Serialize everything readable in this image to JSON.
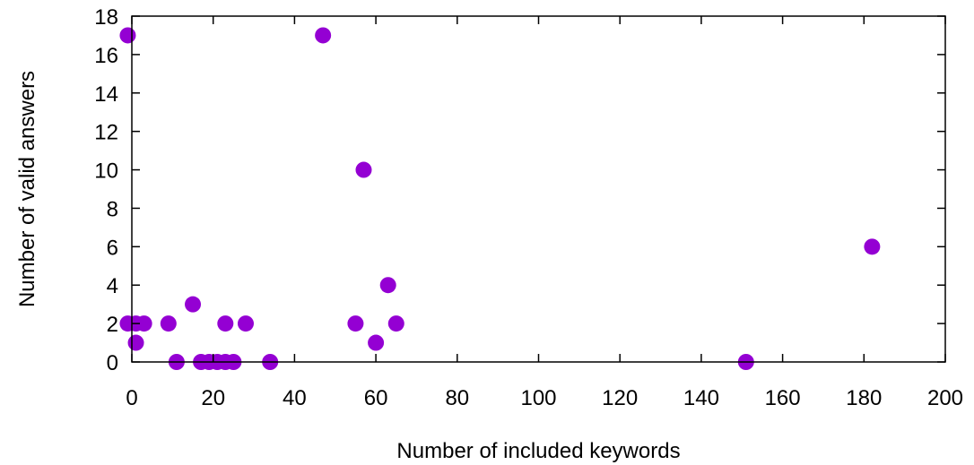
{
  "chart_data": {
    "type": "scatter",
    "xlabel": "Number of included keywords",
    "ylabel": "Number of valid answers",
    "xlim": [
      0,
      200
    ],
    "ylim": [
      0,
      18
    ],
    "xticks": [
      0,
      20,
      40,
      60,
      80,
      100,
      120,
      140,
      160,
      180,
      200
    ],
    "yticks": [
      0,
      2,
      4,
      6,
      8,
      10,
      12,
      14,
      16,
      18
    ],
    "grid": false,
    "legend": "none",
    "marker_color": "#9400d3",
    "points": [
      {
        "x": -1,
        "y": 17
      },
      {
        "x": 47,
        "y": 17
      },
      {
        "x": 57,
        "y": 10
      },
      {
        "x": 182,
        "y": 6
      },
      {
        "x": 63,
        "y": 4
      },
      {
        "x": 15,
        "y": 3
      },
      {
        "x": -1,
        "y": 2
      },
      {
        "x": 1,
        "y": 2
      },
      {
        "x": 3,
        "y": 2
      },
      {
        "x": 9,
        "y": 2
      },
      {
        "x": 23,
        "y": 2
      },
      {
        "x": 28,
        "y": 2
      },
      {
        "x": 55,
        "y": 2
      },
      {
        "x": 65,
        "y": 2
      },
      {
        "x": 1,
        "y": 1
      },
      {
        "x": 60,
        "y": 1
      },
      {
        "x": 11,
        "y": 0
      },
      {
        "x": 17,
        "y": 0
      },
      {
        "x": 19,
        "y": 0
      },
      {
        "x": 21,
        "y": 0
      },
      {
        "x": 23,
        "y": 0
      },
      {
        "x": 25,
        "y": 0
      },
      {
        "x": 34,
        "y": 0
      },
      {
        "x": 151,
        "y": 0
      }
    ]
  }
}
